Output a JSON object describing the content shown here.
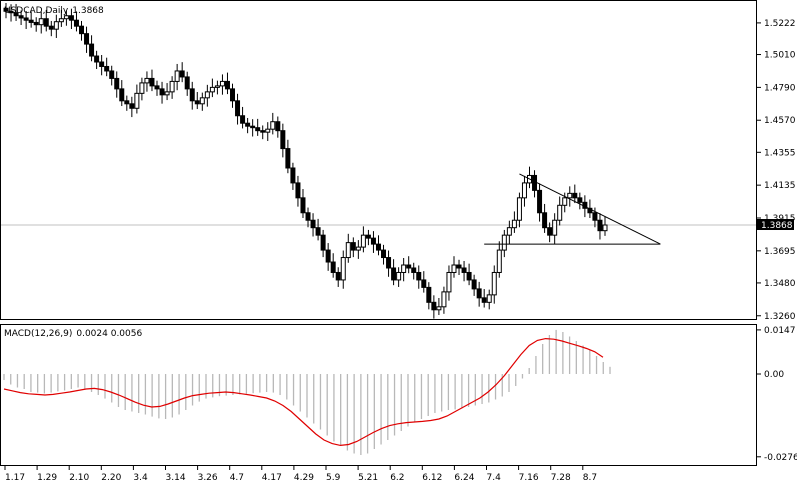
{
  "chart_data": [
    {
      "type": "candlestick",
      "title": "USDCAD,Daily",
      "last_price": "1.3868",
      "x_tick_labels": [
        "1.17",
        "1.29",
        "2.10",
        "2.20",
        "3.4",
        "3.14",
        "3.26",
        "4.7",
        "4.17",
        "4.29",
        "5.9",
        "5.21",
        "6.2",
        "6.12",
        "6.24",
        "7.4",
        "7.16",
        "7.28",
        "8.7"
      ],
      "y_tick_labels": [
        "1.5222",
        "1.5010",
        "1.4790",
        "1.4570",
        "1.4355",
        "1.4135",
        "1.3915",
        "1.3695",
        "1.3480",
        "1.3260"
      ],
      "y_ticks": [
        1.5222,
        1.501,
        1.479,
        1.457,
        1.4355,
        1.4135,
        1.3915,
        1.3695,
        1.348,
        1.326
      ],
      "ylim": [
        1.3245,
        1.5362
      ],
      "grid": false,
      "price_line": 1.3868,
      "close_series": [
        1.53,
        1.529,
        1.527,
        1.5255,
        1.524,
        1.5225,
        1.521,
        1.525,
        1.52,
        1.518,
        1.523,
        1.525,
        1.527,
        1.524,
        1.52,
        1.515,
        1.508,
        1.5,
        1.496,
        1.493,
        1.49,
        1.485,
        1.478,
        1.47,
        1.468,
        1.465,
        1.475,
        1.482,
        1.485,
        1.48,
        1.478,
        1.474,
        1.476,
        1.483,
        1.49,
        1.486,
        1.478,
        1.47,
        1.468,
        1.472,
        1.476,
        1.479,
        1.48,
        1.483,
        1.478,
        1.47,
        1.46,
        1.455,
        1.453,
        1.452,
        1.45,
        1.449,
        1.451,
        1.456,
        1.45,
        1.438,
        1.425,
        1.415,
        1.405,
        1.395,
        1.39,
        1.385,
        1.38,
        1.37,
        1.362,
        1.355,
        1.35,
        1.365,
        1.375,
        1.37,
        1.372,
        1.38,
        1.378,
        1.374,
        1.37,
        1.365,
        1.358,
        1.35,
        1.355,
        1.36,
        1.358,
        1.355,
        1.35,
        1.345,
        1.335,
        1.33,
        1.332,
        1.342,
        1.355,
        1.36,
        1.358,
        1.355,
        1.35,
        1.344,
        1.338,
        1.335,
        1.34,
        1.355,
        1.37,
        1.38,
        1.385,
        1.39,
        1.405,
        1.415,
        1.42,
        1.41,
        1.395,
        1.385,
        1.38,
        1.39,
        1.4,
        1.405,
        1.408,
        1.405,
        1.402,
        1.398,
        1.395,
        1.39,
        1.383,
        1.3868
      ],
      "trendlines": [
        {
          "from_index": 102,
          "from_value": 1.421,
          "to_index": 130,
          "to_value": 1.374
        },
        {
          "from_index": 95,
          "from_value": 1.374,
          "to_index": 130,
          "to_value": 1.374
        }
      ]
    },
    {
      "type": "histogram+line",
      "title": "MACD(12,26,9)",
      "values_text": "0.0024 0.0056",
      "y_tick_labels": [
        "0.0147",
        "0.00",
        "-0.0276"
      ],
      "y_ticks": [
        0.0147,
        0.0,
        -0.0276
      ],
      "ylim": [
        -0.03,
        0.016
      ],
      "macd_histogram": [
        -0.002,
        -0.0035,
        -0.0045,
        -0.005,
        -0.006,
        -0.0062,
        -0.0065,
        -0.0062,
        -0.0058,
        -0.0055,
        -0.005,
        -0.0045,
        -0.005,
        -0.006,
        -0.007,
        -0.0082,
        -0.0095,
        -0.011,
        -0.012,
        -0.0125,
        -0.013,
        -0.0135,
        -0.0142,
        -0.0148,
        -0.015,
        -0.0145,
        -0.0135,
        -0.012,
        -0.0105,
        -0.0092,
        -0.0082,
        -0.0078,
        -0.0074,
        -0.0072,
        -0.007,
        -0.0068,
        -0.0066,
        -0.0064,
        -0.0062,
        -0.006,
        -0.0062,
        -0.007,
        -0.0085,
        -0.0105,
        -0.0125,
        -0.0145,
        -0.0165,
        -0.0185,
        -0.0205,
        -0.0225,
        -0.024,
        -0.0255,
        -0.0265,
        -0.027,
        -0.0265,
        -0.025,
        -0.0235,
        -0.022,
        -0.0205,
        -0.019,
        -0.0175,
        -0.016,
        -0.015,
        -0.014,
        -0.013,
        -0.0125,
        -0.012,
        -0.0118,
        -0.0115,
        -0.011,
        -0.0105,
        -0.01,
        -0.0095,
        -0.0085,
        -0.0075,
        -0.006,
        -0.004,
        -0.0015,
        0.002,
        0.006,
        0.01,
        0.013,
        0.0147,
        0.014,
        0.0125,
        0.011,
        0.0095,
        0.008,
        0.006,
        0.004,
        0.0024
      ],
      "signal_line": [
        -0.005,
        -0.0056,
        -0.0062,
        -0.0066,
        -0.0068,
        -0.007,
        -0.0068,
        -0.0064,
        -0.006,
        -0.0055,
        -0.005,
        -0.0048,
        -0.0052,
        -0.006,
        -0.007,
        -0.0082,
        -0.0094,
        -0.0104,
        -0.011,
        -0.0108,
        -0.01,
        -0.009,
        -0.008,
        -0.0072,
        -0.0068,
        -0.0064,
        -0.0062,
        -0.006,
        -0.0062,
        -0.0066,
        -0.007,
        -0.0075,
        -0.008,
        -0.009,
        -0.0105,
        -0.0125,
        -0.015,
        -0.0175,
        -0.02,
        -0.022,
        -0.0232,
        -0.0238,
        -0.0235,
        -0.0225,
        -0.021,
        -0.0195,
        -0.0182,
        -0.0172,
        -0.0166,
        -0.0162,
        -0.016,
        -0.0158,
        -0.0155,
        -0.015,
        -0.014,
        -0.0125,
        -0.011,
        -0.0095,
        -0.008,
        -0.006,
        -0.0035,
        -0.0005,
        0.003,
        0.0065,
        0.0095,
        0.0112,
        0.0118,
        0.0116,
        0.011,
        0.0102,
        0.0094,
        0.0085,
        0.0074,
        0.0056
      ]
    }
  ]
}
